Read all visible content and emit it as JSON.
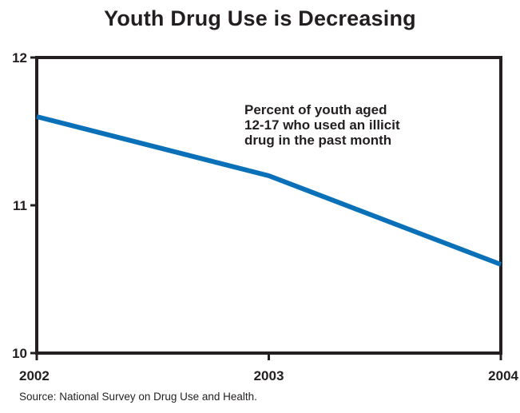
{
  "chart_data": {
    "type": "line",
    "title": "Youth Drug Use is Decreasing",
    "annotation": [
      "Percent of youth aged",
      "12-17 who used an illicit",
      "drug in the past month"
    ],
    "source": "Source:  National Survey on Drug Use and Health.",
    "x": [
      "2002",
      "2003",
      "2004"
    ],
    "series": [
      {
        "values": [
          11.6,
          11.2,
          10.6
        ],
        "color": "#0a70b8"
      }
    ],
    "ylim": [
      10,
      12
    ],
    "yticks": [
      "10",
      "11",
      "12"
    ],
    "grid": false,
    "xlabel": "",
    "ylabel": ""
  }
}
